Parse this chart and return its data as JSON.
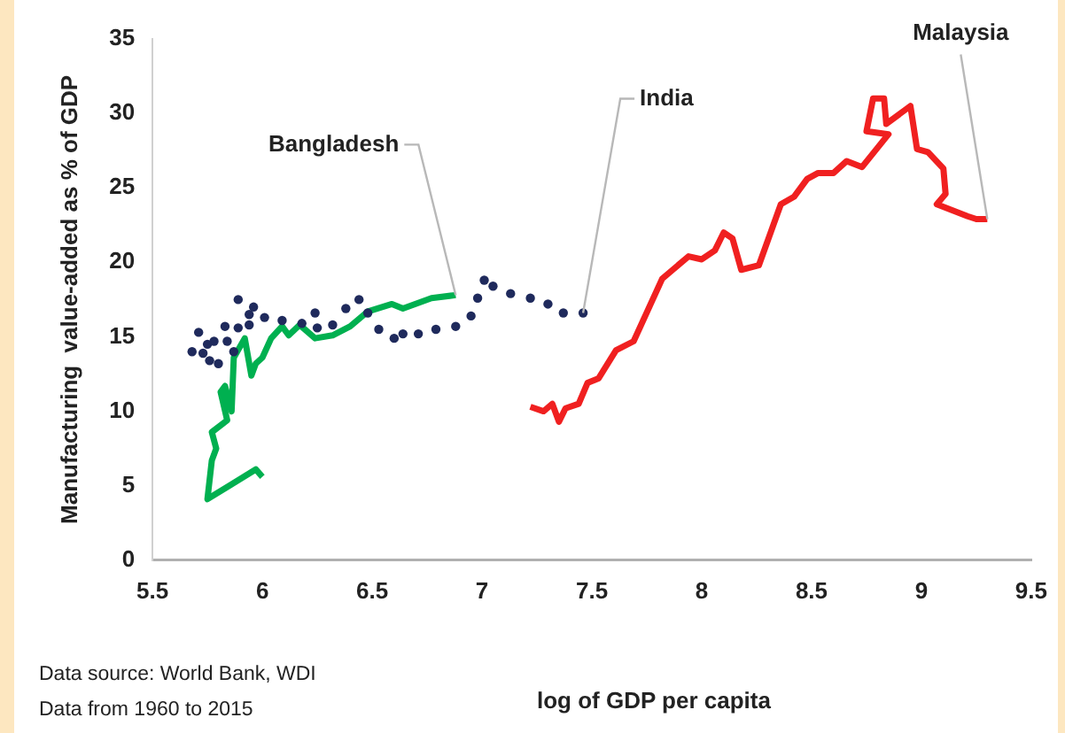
{
  "chart_data": {
    "type": "line",
    "xlabel": "log of GDP per capita",
    "ylabel": "Manufacturing  value-added as % of GDP",
    "annotations": [
      "Data source: World Bank, WDI",
      "Data from 1960 to 2015"
    ],
    "xlim": [
      5.5,
      9.5
    ],
    "xticks": [
      5.5,
      6,
      6.5,
      7,
      7.5,
      8,
      8.5,
      9,
      9.5
    ],
    "ylim": [
      0,
      35
    ],
    "yticks": [
      0,
      5,
      10,
      15,
      20,
      25,
      30,
      35
    ],
    "grid": false,
    "legend": false,
    "series": [
      {
        "name": "India",
        "type": "scatter",
        "color": "#1f2a5c",
        "x": [
          5.68,
          5.71,
          5.73,
          5.75,
          5.76,
          5.78,
          5.8,
          5.83,
          5.84,
          5.87,
          5.89,
          5.89,
          5.94,
          5.94,
          5.96,
          6.01,
          6.09,
          6.18,
          6.24,
          6.25,
          6.32,
          6.38,
          6.44,
          6.48,
          6.53,
          6.6,
          6.64,
          6.71,
          6.79,
          6.88,
          6.95,
          6.98,
          7.01,
          7.05,
          7.13,
          7.22,
          7.3,
          7.37,
          7.46
        ],
        "values": [
          14.0,
          15.3,
          13.9,
          14.5,
          13.4,
          14.7,
          13.2,
          15.7,
          14.7,
          14.0,
          17.5,
          15.6,
          16.5,
          15.8,
          17.0,
          16.3,
          16.1,
          15.9,
          16.6,
          15.6,
          15.8,
          16.9,
          17.5,
          16.6,
          15.5,
          14.9,
          15.2,
          15.2,
          15.5,
          15.7,
          16.4,
          17.6,
          18.8,
          18.4,
          17.9,
          17.6,
          17.2,
          16.6,
          16.6
        ]
      },
      {
        "name": "Bangladesh",
        "type": "line",
        "color": "#00b050",
        "x": [
          6.0,
          5.97,
          5.75,
          5.77,
          5.79,
          5.77,
          5.84,
          5.81,
          5.83,
          5.86,
          5.87,
          5.92,
          5.95,
          5.97,
          6.0,
          6.04,
          6.09,
          6.12,
          6.17,
          6.24,
          6.32,
          6.4,
          6.48,
          6.59,
          6.64,
          6.77,
          6.88
        ],
        "values": [
          5.6,
          6.1,
          4.1,
          6.7,
          7.5,
          8.6,
          9.4,
          11.3,
          11.7,
          10.0,
          13.6,
          14.9,
          12.4,
          13.2,
          13.6,
          14.9,
          15.7,
          15.1,
          15.8,
          14.9,
          15.1,
          15.7,
          16.7,
          17.2,
          16.9,
          17.6,
          17.8
        ]
      },
      {
        "name": "Malaysia",
        "type": "line",
        "color": "#f02020",
        "x": [
          7.22,
          7.28,
          7.32,
          7.35,
          7.38,
          7.44,
          7.48,
          7.53,
          7.61,
          7.69,
          7.82,
          7.94,
          8.0,
          8.06,
          8.1,
          8.14,
          8.18,
          8.26,
          8.36,
          8.42,
          8.48,
          8.53,
          8.6,
          8.66,
          8.73,
          8.85,
          8.75,
          8.78,
          8.83,
          8.84,
          8.95,
          8.98,
          9.03,
          9.1,
          9.11,
          9.07,
          9.21,
          9.25,
          9.3
        ],
        "values": [
          10.3,
          10.0,
          10.5,
          9.3,
          10.2,
          10.5,
          11.9,
          12.2,
          14.1,
          14.7,
          18.9,
          20.4,
          20.2,
          20.8,
          22.0,
          21.6,
          19.5,
          19.8,
          23.9,
          24.4,
          25.6,
          26.0,
          26.0,
          26.8,
          26.4,
          28.6,
          28.8,
          31.0,
          31.0,
          29.3,
          30.5,
          27.6,
          27.4,
          26.3,
          24.6,
          23.9,
          23.1,
          22.9,
          22.9
        ]
      }
    ]
  }
}
